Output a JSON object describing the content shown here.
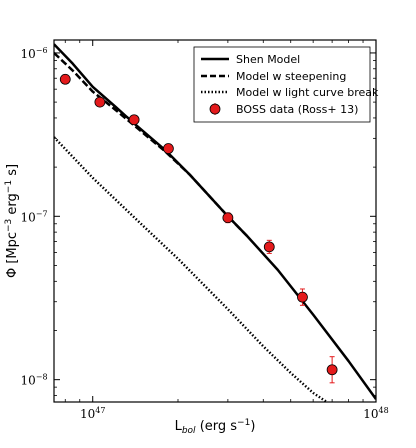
{
  "chart_data": {
    "type": "line",
    "xscale": "log",
    "yscale": "log",
    "xlim": [
      7.3e+46,
      1e+48
    ],
    "ylim": [
      7.3e-09,
      1.2e-06
    ],
    "xlabel": {
      "main": "L",
      "sub": "bol",
      "rest": " (erg s",
      "sup": "−1",
      "end": ")"
    },
    "ylabel": {
      "main": "Φ [Mpc",
      "sup1": "−3",
      "mid": " erg",
      "sup2": "−1",
      "end": " s]"
    },
    "x_ticks": [
      {
        "value": 1e+47,
        "base": "10",
        "exp": "47"
      },
      {
        "value": 1e+48,
        "base": "10",
        "exp": "48"
      }
    ],
    "y_ticks": [
      {
        "value": 1e-08,
        "base": "10",
        "exp": "−8"
      },
      {
        "value": 1e-07,
        "base": "10",
        "exp": "−7"
      },
      {
        "value": 1e-06,
        "base": "10",
        "exp": "−6"
      }
    ],
    "legend": {
      "position": "top-right",
      "entries": [
        {
          "label": "Shen Model",
          "style": "solid"
        },
        {
          "label": "Model w steepening",
          "style": "dashed"
        },
        {
          "label": "Model w light curve break",
          "style": "dotted"
        },
        {
          "label": "BOSS data (Ross+ 13)",
          "style": "marker"
        }
      ]
    },
    "series": [
      {
        "style": "solid",
        "x": [
          7.3e+46,
          8.5e+46,
          1e+47,
          1.2e+47,
          1.4e+47,
          1.8e+47,
          2.2e+47,
          3e+47,
          3.5e+47,
          4.5e+47,
          6e+47,
          8e+47,
          1e+48
        ],
        "y": [
          1.13e-06,
          8.6e-07,
          6.2e-07,
          4.7e-07,
          3.7e-07,
          2.55e-07,
          1.8e-07,
          1e-07,
          7.6e-08,
          4.7e-08,
          2.5e-08,
          1.3e-08,
          7.6e-09
        ]
      },
      {
        "style": "dashed",
        "x": [
          7.3e+46,
          8.5e+46,
          1e+47,
          1.2e+47,
          1.4e+47,
          1.8e+47,
          2.2e+47,
          3e+47,
          3.5e+47
        ],
        "y": [
          1e-06,
          7.8e-07,
          5.8e-07,
          4.5e-07,
          3.6e-07,
          2.5e-07,
          1.8e-07,
          1e-07,
          7.6e-08
        ]
      },
      {
        "style": "dotted",
        "x": [
          7.3e+46,
          1e+47,
          1.5e+47,
          2e+47,
          3e+47,
          4e+47,
          5e+47,
          6e+47,
          6.7e+47
        ],
        "y": [
          3.05e-07,
          1.72e-07,
          8.8e-08,
          5.5e-08,
          2.7e-08,
          1.6e-08,
          1.1e-08,
          8.3e-09,
          7.3e-09
        ]
      }
    ],
    "points": {
      "color": "#e41a1c",
      "edge": "#000000",
      "data": [
        {
          "x": 8e+46,
          "y": 6.9e-07,
          "err": 0.02
        },
        {
          "x": 1.06e+47,
          "y": 5e-07,
          "err": 0.02
        },
        {
          "x": 1.4e+47,
          "y": 3.9e-07,
          "err": 0.02
        },
        {
          "x": 1.85e+47,
          "y": 2.6e-07,
          "err": 0.025
        },
        {
          "x": 3e+47,
          "y": 9.8e-08,
          "err": 0.03
        },
        {
          "x": 4.2e+47,
          "y": 6.5e-08,
          "err": 0.04
        },
        {
          "x": 5.5e+47,
          "y": 3.2e-08,
          "err": 0.05
        },
        {
          "x": 7e+47,
          "y": 1.15e-08,
          "err": 0.08
        }
      ]
    }
  }
}
